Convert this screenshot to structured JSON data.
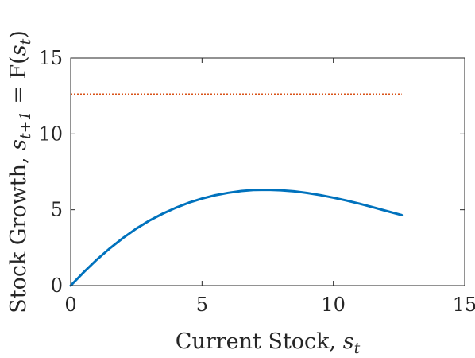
{
  "chart_data": {
    "type": "line",
    "xlabel": "Current Stock, s_t",
    "xlabel_parts": {
      "text": "Current Stock, ",
      "var": "s",
      "sub": "t"
    },
    "ylabel": "Stock Growth, s_{t+1} = F(s_t)",
    "ylabel_parts": {
      "text": "Stock Growth, ",
      "var1": "s",
      "sub1": "t+1",
      "eq": " = F(",
      "var2": "s",
      "sub2": "t",
      "close": ")"
    },
    "xlim": [
      0,
      15
    ],
    "ylim": [
      0,
      15
    ],
    "x_ticks": [
      "0",
      "5",
      "10",
      "15"
    ],
    "y_ticks": [
      "0",
      "5",
      "10",
      "15"
    ],
    "grid": false,
    "legend": "none",
    "series": [
      {
        "style": "solid",
        "color": "#0072BD",
        "x": [
          0,
          0.5,
          1,
          1.5,
          2,
          2.5,
          3,
          3.5,
          4,
          4.5,
          5,
          5.5,
          6,
          6.5,
          7,
          7.5,
          8,
          8.5,
          9,
          9.5,
          10,
          10.5,
          11,
          11.5,
          12,
          12.6
        ],
        "y": [
          0,
          0.89,
          1.72,
          2.47,
          3.15,
          3.76,
          4.29,
          4.74,
          5.13,
          5.47,
          5.74,
          5.96,
          6.12,
          6.24,
          6.31,
          6.32,
          6.29,
          6.22,
          6.11,
          5.97,
          5.8,
          5.61,
          5.4,
          5.17,
          4.93,
          4.65
        ]
      },
      {
        "style": "dotted",
        "color": "#D95319",
        "x": [
          0,
          12.6
        ],
        "y": [
          12.6,
          12.6
        ]
      }
    ]
  }
}
